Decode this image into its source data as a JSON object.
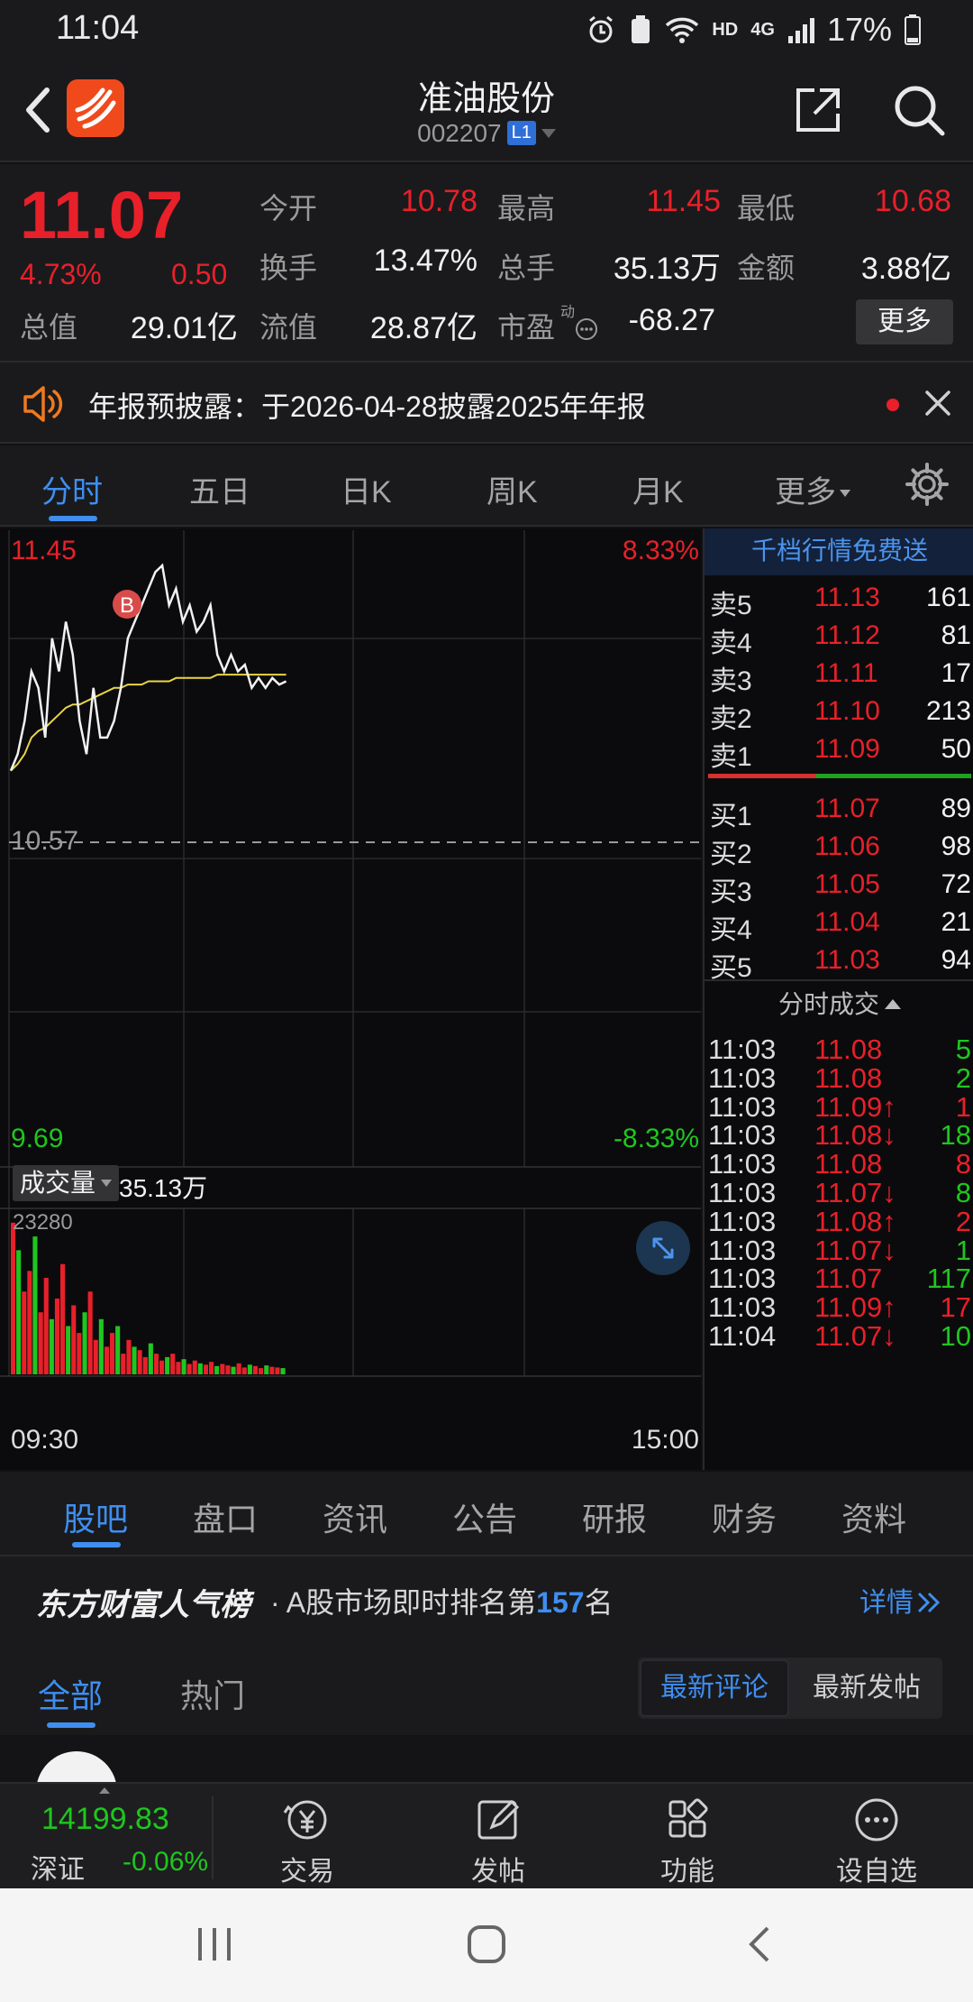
{
  "status_bar": {
    "time": "11:04",
    "network": "HD",
    "net_type": "4G",
    "battery": "17%"
  },
  "header": {
    "title": "准油股份",
    "code": "002207",
    "level": "L1"
  },
  "quote": {
    "price": "11.07",
    "change_pct": "4.73%",
    "change": "0.50",
    "fields": [
      {
        "label": "今开",
        "value": "10.78",
        "color": "red"
      },
      {
        "label": "最高",
        "value": "11.45",
        "color": "red"
      },
      {
        "label": "最低",
        "value": "10.68",
        "color": "red"
      },
      {
        "label": "换手",
        "value": "13.47%",
        "color": "white"
      },
      {
        "label": "总手",
        "value": "35.13万",
        "color": "white"
      },
      {
        "label": "金额",
        "value": "3.88亿",
        "color": "white"
      },
      {
        "label": "总值",
        "value": "29.01亿",
        "color": "white"
      },
      {
        "label": "流值",
        "value": "28.87亿",
        "color": "white"
      },
      {
        "label": "市盈",
        "value": "-68.27",
        "color": "white"
      }
    ],
    "pe_superscript": "动",
    "more_label": "更多"
  },
  "notice": {
    "text": "年报预披露：于2026-04-28披露2025年年报"
  },
  "chart_tabs": {
    "tabs": [
      "分时",
      "五日",
      "日K",
      "周K",
      "月K",
      "更多"
    ],
    "active": 0
  },
  "chart_data": {
    "type": "line",
    "title": "",
    "xlabel": "",
    "ylabel": "",
    "x_start_label": "09:30",
    "x_end_label": "15:00",
    "ylim": [
      9.69,
      11.45
    ],
    "prev_close": "10.57",
    "labels": {
      "top_price": "11.45",
      "top_pct": "8.33%",
      "bottom_price": "9.69",
      "bottom_pct": "-8.33%",
      "mid_price": "10.57"
    },
    "marker": "B",
    "price_series": [
      10.8,
      10.85,
      10.95,
      11.1,
      11.05,
      10.9,
      11.2,
      11.1,
      11.25,
      11.15,
      10.95,
      10.85,
      11.05,
      10.9,
      10.9,
      10.95,
      11.05,
      11.2,
      11.25,
      11.3,
      11.35,
      11.4,
      11.42,
      11.3,
      11.35,
      11.25,
      11.3,
      11.22,
      11.25,
      11.3,
      11.15,
      11.1,
      11.15,
      11.1,
      11.12,
      11.05,
      11.08,
      11.05,
      11.08,
      11.06,
      11.07
    ],
    "avg_series": [
      10.8,
      10.82,
      10.85,
      10.9,
      10.92,
      10.93,
      10.95,
      10.97,
      10.99,
      11.0,
      11.0,
      11.01,
      11.02,
      11.03,
      11.04,
      11.05,
      11.05,
      11.06,
      11.06,
      11.06,
      11.07,
      11.07,
      11.07,
      11.07,
      11.08,
      11.08,
      11.08,
      11.08,
      11.08,
      11.08,
      11.09,
      11.09,
      11.09,
      11.09,
      11.09,
      11.09,
      11.09,
      11.09,
      11.09,
      11.09,
      11.09
    ],
    "volume_label": "成交量",
    "volume_total": "35.13万",
    "volume_max": "23280",
    "volume": [
      22000,
      18000,
      12000,
      15000,
      20000,
      9000,
      14000,
      8000,
      11000,
      16000,
      7000,
      10000,
      6000,
      9000,
      12000,
      5000,
      8000,
      4000,
      6000,
      7000,
      3000,
      5000,
      4000,
      3500,
      2500,
      4500,
      3000,
      2000,
      2500,
      3000,
      1800,
      2200,
      1500,
      2000,
      1600,
      1400,
      1800,
      1200,
      1500,
      1300,
      1100,
      1600,
      1000,
      1400,
      1200,
      900,
      1300,
      1100,
      1000,
      900
    ]
  },
  "order_book": {
    "banner": "千档行情免费送",
    "asks": [
      {
        "label": "卖5",
        "price": "11.13",
        "vol": "161"
      },
      {
        "label": "卖4",
        "price": "11.12",
        "vol": "81"
      },
      {
        "label": "卖3",
        "price": "11.11",
        "vol": "17"
      },
      {
        "label": "卖2",
        "price": "11.10",
        "vol": "213"
      },
      {
        "label": "卖1",
        "price": "11.09",
        "vol": "50"
      }
    ],
    "bids": [
      {
        "label": "买1",
        "price": "11.07",
        "vol": "89"
      },
      {
        "label": "买2",
        "price": "11.06",
        "vol": "98"
      },
      {
        "label": "买3",
        "price": "11.05",
        "vol": "72"
      },
      {
        "label": "买4",
        "price": "11.04",
        "vol": "21"
      },
      {
        "label": "买5",
        "price": "11.03",
        "vol": "94"
      }
    ],
    "ticks_title": "分时成交",
    "ticks": [
      {
        "time": "11:03",
        "price": "11.08",
        "vol": "5",
        "dir": "",
        "color": "green"
      },
      {
        "time": "11:03",
        "price": "11.08",
        "vol": "2",
        "dir": "",
        "color": "green"
      },
      {
        "time": "11:03",
        "price": "11.09↑",
        "vol": "1",
        "dir": "up",
        "color": "red"
      },
      {
        "time": "11:03",
        "price": "11.08↓",
        "vol": "18",
        "dir": "down",
        "color": "green"
      },
      {
        "time": "11:03",
        "price": "11.08",
        "vol": "8",
        "dir": "",
        "color": "red"
      },
      {
        "time": "11:03",
        "price": "11.07↓",
        "vol": "8",
        "dir": "down",
        "color": "green"
      },
      {
        "time": "11:03",
        "price": "11.08↑",
        "vol": "2",
        "dir": "up",
        "color": "red"
      },
      {
        "time": "11:03",
        "price": "11.07↓",
        "vol": "1",
        "dir": "down",
        "color": "green"
      },
      {
        "time": "11:03",
        "price": "11.07",
        "vol": "117",
        "dir": "",
        "color": "green"
      },
      {
        "time": "11:03",
        "price": "11.09↑",
        "vol": "17",
        "dir": "up",
        "color": "red"
      },
      {
        "time": "11:04",
        "price": "11.07↓",
        "vol": "10",
        "dir": "down",
        "color": "green"
      }
    ]
  },
  "bottom_tabs": {
    "tabs": [
      "股吧",
      "盘口",
      "资讯",
      "公告",
      "研报",
      "财务",
      "资料"
    ],
    "active": 0
  },
  "popularity": {
    "brand": "东方财富人气榜",
    "prefix": "· A股市场即时排名第",
    "rank": "157",
    "suffix": "名",
    "detail": "详情"
  },
  "comment_tabs": {
    "all": "全部",
    "hot": "热门",
    "latest_comment": "最新评论",
    "latest_post": "最新发帖"
  },
  "toolbar": {
    "index_value": "14199.83",
    "index_name": "深证",
    "index_change": "-0.06%",
    "tools": [
      {
        "label": "交易",
        "icon": "trade-icon"
      },
      {
        "label": "发帖",
        "icon": "compose-icon"
      },
      {
        "label": "功能",
        "icon": "apps-icon"
      },
      {
        "label": "设自选",
        "icon": "more-icon"
      }
    ]
  },
  "colors": {
    "up": "#e8202a",
    "down": "#1fc61f",
    "accent": "#3f8ef0",
    "avg_line": "#e8d545"
  }
}
